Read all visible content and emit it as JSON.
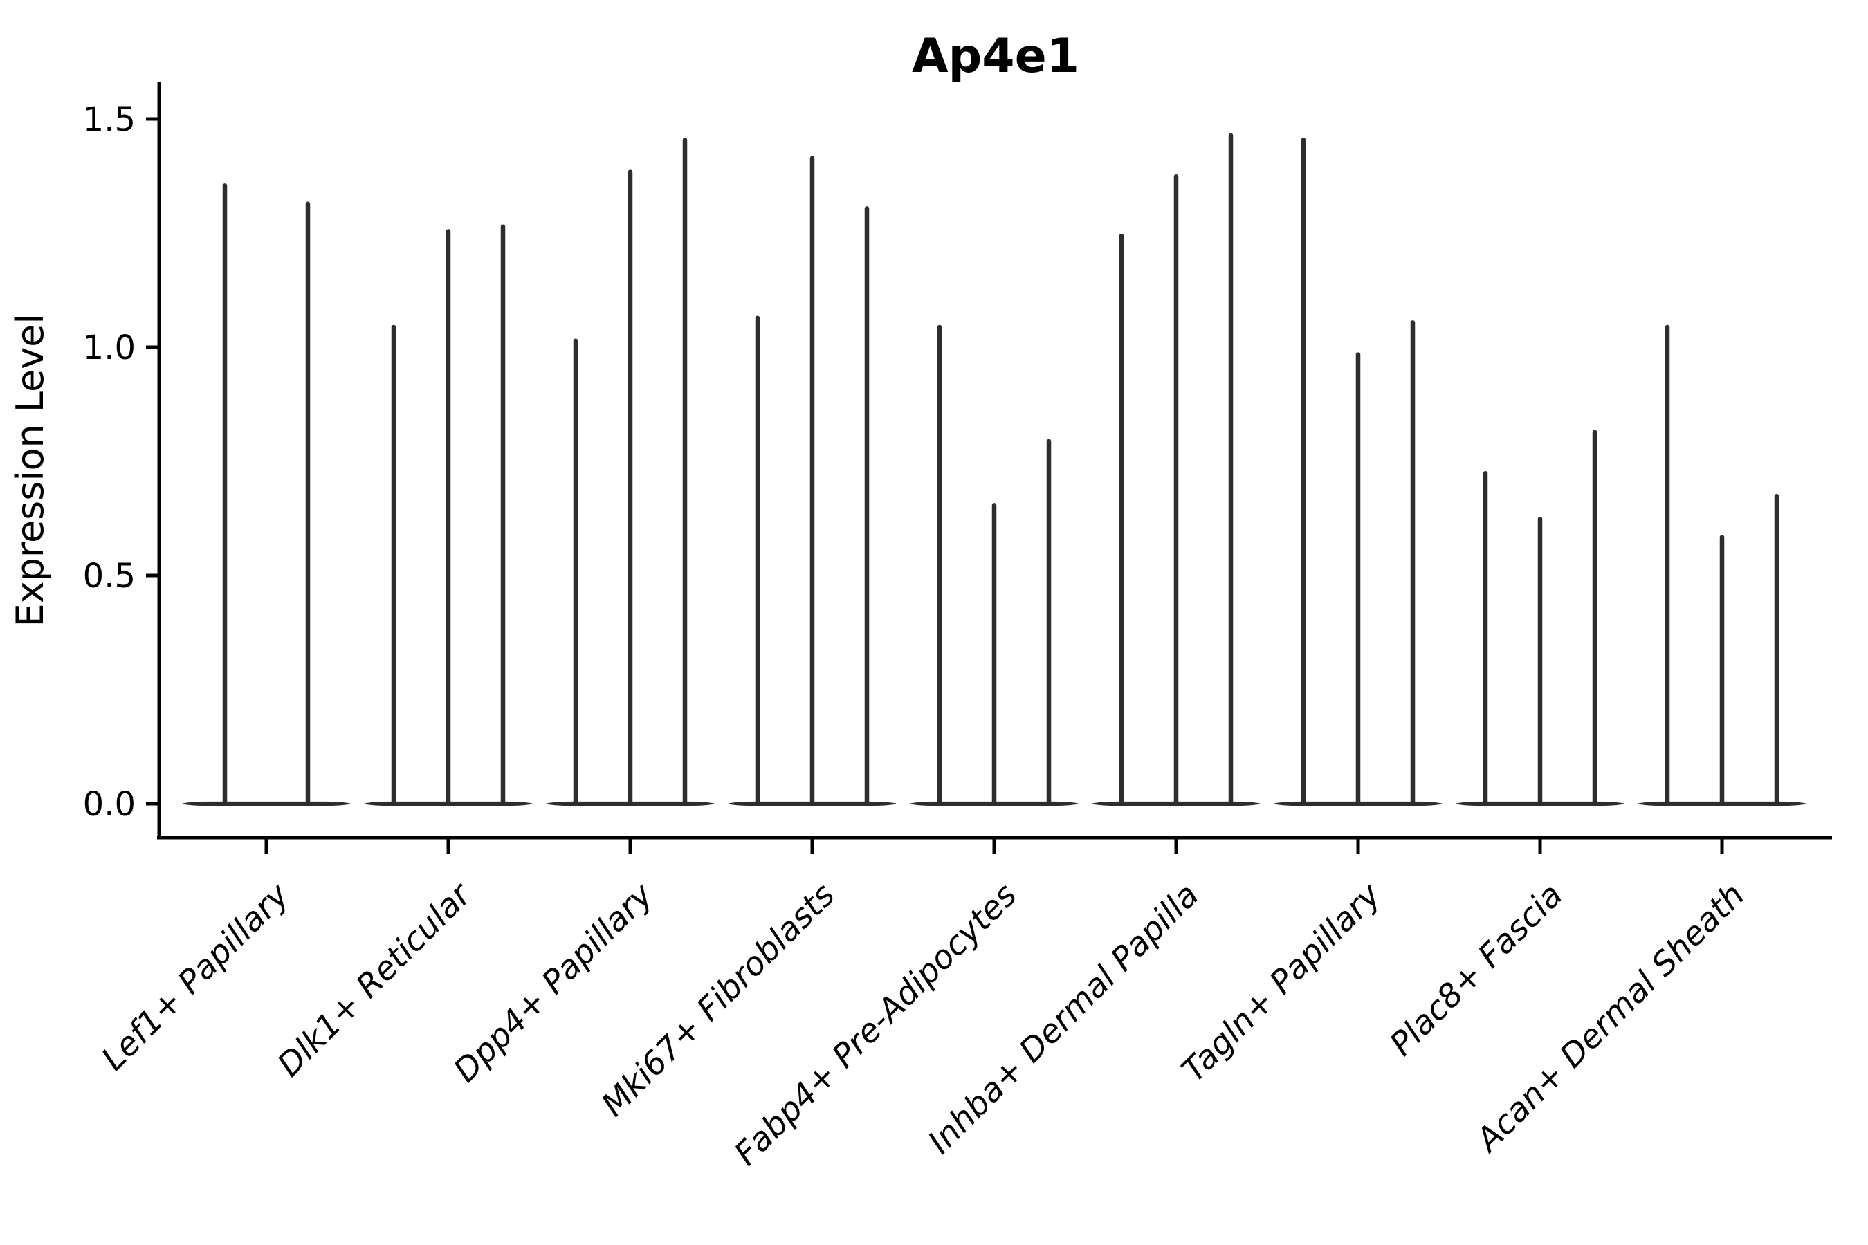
{
  "chart_data": {
    "type": "violin",
    "title": "Ap4e1",
    "ylabel": "Expression Level",
    "xlabel": "",
    "grid": false,
    "legend": false,
    "yticks": [
      0.0,
      0.5,
      1.0,
      1.5
    ],
    "ylim": [
      -0.07,
      1.58
    ],
    "violin_color": "#2d2d2d",
    "axis_color": "#000000",
    "categories": [
      "Lef1+ Papillary",
      "Dlk1+ Reticular",
      "Dpp4+ Papillary",
      "Mki67+ Fibroblasts",
      "Fabp4+ Pre-Adipocytes",
      "Inhba+ Dermal Papilla",
      "Tagln+ Papillary",
      "Plac8+ Fascia",
      "Acan+ Dermal Sheath"
    ],
    "violins": [
      {
        "category": "Lef1+ Papillary",
        "sample_maxima": [
          1.36,
          1.32
        ]
      },
      {
        "category": "Dlk1+ Reticular",
        "sample_maxima": [
          1.05,
          1.26,
          1.27
        ]
      },
      {
        "category": "Dpp4+ Papillary",
        "sample_maxima": [
          1.02,
          1.39,
          1.46
        ]
      },
      {
        "category": "Mki67+ Fibroblasts",
        "sample_maxima": [
          1.07,
          1.42,
          1.31
        ]
      },
      {
        "category": "Fabp4+ Pre-Adipocytes",
        "sample_maxima": [
          1.05,
          0.66,
          0.8
        ]
      },
      {
        "category": "Inhba+ Dermal Papilla",
        "sample_maxima": [
          1.25,
          1.38,
          1.47
        ]
      },
      {
        "category": "Tagln+ Papillary",
        "sample_maxima": [
          1.46,
          0.99,
          1.06
        ]
      },
      {
        "category": "Plac8+ Fascia",
        "sample_maxima": [
          0.73,
          0.63,
          0.82
        ]
      },
      {
        "category": "Acan+ Dermal Sheath",
        "sample_maxima": [
          1.05,
          0.59,
          0.68
        ]
      }
    ]
  }
}
